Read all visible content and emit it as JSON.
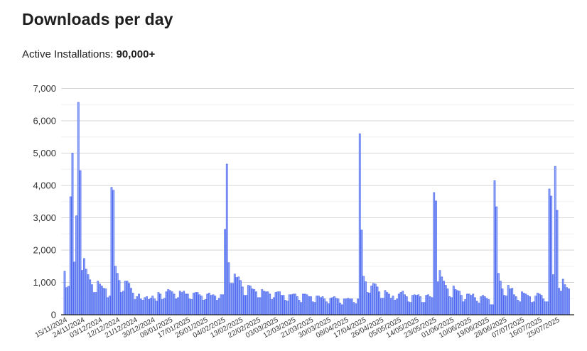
{
  "header": {
    "title": "Downloads per day",
    "installs_label": "Active Installations:",
    "installs_value": "90,000+"
  },
  "colors": {
    "bar_fill": "#95a8f6",
    "bar_edge": "#3a58ef",
    "grid_major": "#d6d6d6",
    "grid_minor": "#f0f0f0",
    "axis": "#222222"
  },
  "chart_data": {
    "type": "bar",
    "title": "Downloads per day",
    "xlabel": "",
    "ylabel": "",
    "ylim": [
      0,
      7000
    ],
    "y_ticks": [
      0,
      1000,
      2000,
      3000,
      4000,
      5000,
      6000,
      7000
    ],
    "y_tick_labels": [
      "0",
      "1,000",
      "2,000",
      "3,000",
      "4,000",
      "5,000",
      "6,000",
      "7,000"
    ],
    "grid": true,
    "start_date": "15/11/2024",
    "end_date": "31/07/2025",
    "x_tick_every_days": 9,
    "x_tick_labels": [
      "15/11/2024",
      "24/11/2024",
      "03/12/2024",
      "12/12/2024",
      "21/12/2024",
      "30/12/2024",
      "08/01/2025",
      "17/01/2025",
      "26/01/2025",
      "04/02/2025",
      "13/02/2025",
      "22/02/2025",
      "03/03/2025",
      "12/03/2025",
      "21/03/2025",
      "30/03/2025",
      "08/04/2025",
      "17/04/2025",
      "26/04/2025",
      "05/05/2025",
      "14/05/2025",
      "23/05/2025",
      "01/06/2025",
      "10/06/2025",
      "19/06/2025",
      "28/06/2025",
      "07/07/2025",
      "16/07/2025",
      "25/07/2025"
    ],
    "values": [
      1346,
      840,
      880,
      3650,
      5000,
      1630,
      3060,
      6570,
      4460,
      1370,
      1740,
      1410,
      1240,
      1080,
      930,
      690,
      690,
      1040,
      950,
      890,
      820,
      800,
      530,
      580,
      3940,
      3850,
      1500,
      1280,
      1060,
      690,
      730,
      1040,
      1040,
      970,
      820,
      670,
      470,
      560,
      640,
      490,
      450,
      530,
      560,
      470,
      510,
      580,
      490,
      420,
      690,
      640,
      470,
      510,
      710,
      780,
      750,
      710,
      640,
      490,
      530,
      730,
      690,
      730,
      640,
      640,
      490,
      470,
      670,
      690,
      690,
      620,
      580,
      450,
      470,
      640,
      670,
      600,
      620,
      580,
      450,
      510,
      620,
      620,
      2640,
      4660,
      1610,
      970,
      970,
      1260,
      1150,
      1170,
      1060,
      860,
      600,
      600,
      910,
      890,
      800,
      780,
      710,
      530,
      530,
      780,
      730,
      710,
      710,
      640,
      470,
      530,
      690,
      710,
      710,
      600,
      600,
      450,
      420,
      620,
      620,
      640,
      640,
      560,
      450,
      380,
      640,
      640,
      620,
      560,
      560,
      400,
      380,
      580,
      580,
      530,
      560,
      490,
      400,
      340,
      510,
      530,
      560,
      510,
      490,
      360,
      310,
      490,
      490,
      510,
      490,
      490,
      380,
      340,
      490,
      5600,
      2620,
      1190,
      1020,
      690,
      670,
      890,
      970,
      950,
      860,
      710,
      510,
      510,
      750,
      690,
      640,
      510,
      580,
      450,
      490,
      640,
      690,
      730,
      620,
      560,
      400,
      380,
      600,
      620,
      600,
      620,
      560,
      380,
      380,
      600,
      620,
      560,
      530,
      3780,
      3520,
      1020,
      1370,
      1170,
      1040,
      910,
      800,
      560,
      530,
      890,
      780,
      750,
      730,
      600,
      400,
      470,
      640,
      640,
      600,
      640,
      530,
      420,
      360,
      560,
      600,
      560,
      510,
      470,
      310,
      310,
      4150,
      3340,
      1280,
      1040,
      800,
      600,
      580,
      910,
      800,
      820,
      620,
      560,
      450,
      400,
      710,
      670,
      640,
      600,
      560,
      380,
      400,
      580,
      670,
      640,
      600,
      490,
      400,
      400,
      3890,
      3670,
      1240,
      4590,
      3230,
      820,
      730,
      1100,
      930,
      840,
      800
    ]
  }
}
